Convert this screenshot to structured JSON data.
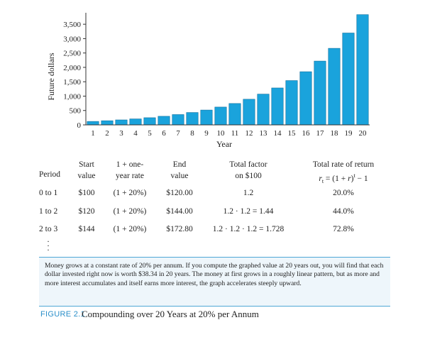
{
  "chart_data": {
    "type": "bar",
    "categories": [
      "1",
      "2",
      "3",
      "4",
      "5",
      "6",
      "7",
      "8",
      "9",
      "10",
      "11",
      "12",
      "13",
      "14",
      "15",
      "16",
      "17",
      "18",
      "19",
      "20"
    ],
    "values": [
      120,
      144,
      172.8,
      207.36,
      248.83,
      298.6,
      358.32,
      429.98,
      515.98,
      619.17,
      743.01,
      891.61,
      1069.93,
      1283.92,
      1540.7,
      1848.84,
      2218.61,
      2662.33,
      3194.8,
      3833.76
    ],
    "xlabel": "Year",
    "ylabel": "Future dollars",
    "ylim": [
      0,
      3800
    ],
    "yticks": [
      "0",
      "500",
      "1,000",
      "1,500",
      "2,000",
      "2,500",
      "3,000",
      "3,500"
    ],
    "ytick_values": [
      0,
      500,
      1000,
      1500,
      2000,
      2500,
      3000,
      3500
    ],
    "bar_color": "#1aa3dc"
  },
  "table": {
    "headers": {
      "period": "Period",
      "start_1": "Start",
      "start_2": "value",
      "rate_1": "1 + one-",
      "rate_2": "year rate",
      "end_1": "End",
      "end_2": "value",
      "factor_1": "Total factor",
      "factor_2": "on $100",
      "total_1": "Total rate of return",
      "total_2": "r_t = (1 + r)^t − 1",
      "total_2_r": "r",
      "total_2_sub": "t",
      "total_2_mid": " = (1 + ",
      "total_2_r2": "r",
      "total_2_close": ")",
      "total_2_sup": "t",
      "total_2_end": " − 1"
    },
    "rows": [
      {
        "period": "0 to 1",
        "start": "$100",
        "rate": "(1 + 20%)",
        "end": "$120.00",
        "factor": "1.2",
        "total": "20.0%"
      },
      {
        "period": "1 to 2",
        "start": "$120",
        "rate": "(1 + 20%)",
        "end": "$144.00",
        "factor": "1.2 · 1.2 = 1.44",
        "total": "44.0%"
      },
      {
        "period": "2 to 3",
        "start": "$144",
        "rate": "(1 + 20%)",
        "end": "$172.80",
        "factor": "1.2 · 1.2 · 1.2 = 1.728",
        "total": "72.8%"
      }
    ],
    "ellipsis": "⋮"
  },
  "caption": {
    "text": "Money grows at a constant rate of 20% per annum. If you compute the graphed value at 20 years out, you will find that each dollar invested right now is worth $38.34 in 20 years. The money at first grows in a roughly linear pattern, but as more and more interest accumulates and itself earns more interest, the graph accelerates steeply upward.",
    "figure_label": "FIGURE 2.1",
    "figure_title": "Compounding over 20 Years at 20% per Annum"
  }
}
